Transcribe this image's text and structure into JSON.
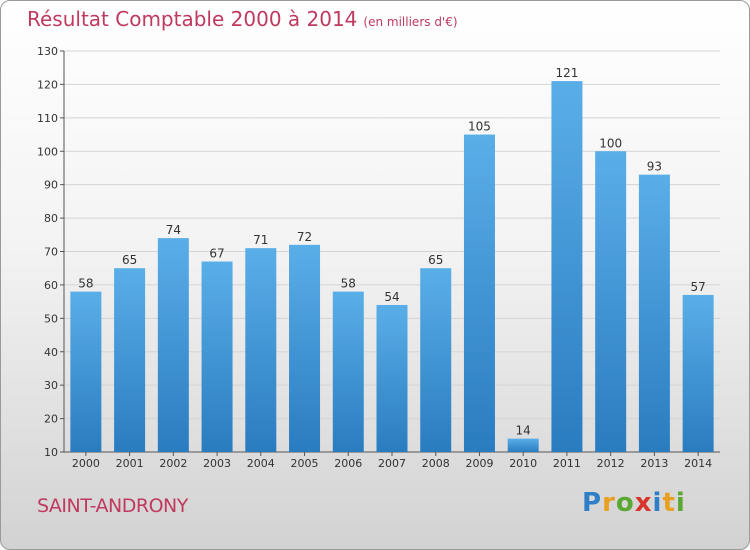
{
  "header": {
    "title": "Résultat Comptable 2000 à 2014",
    "subtitle": "(en milliers d'€)"
  },
  "footer": {
    "commune": "SAINT-ANDRONY",
    "logo_letters": [
      "P",
      "r",
      "o",
      "x",
      "i",
      "t",
      "i"
    ],
    "logo_colors": [
      "#2f7fc8",
      "#e8a020",
      "#5aa832",
      "#d8342b",
      "#2f7fc8",
      "#e8a020",
      "#5aa832"
    ]
  },
  "chart_data": {
    "type": "bar",
    "title": "Résultat Comptable 2000 à 2014",
    "subtitle": "(en milliers d'€)",
    "categories": [
      "2000",
      "2001",
      "2002",
      "2003",
      "2004",
      "2005",
      "2006",
      "2007",
      "2008",
      "2009",
      "2010",
      "2011",
      "2012",
      "2013",
      "2014"
    ],
    "values": [
      58,
      65,
      74,
      67,
      71,
      72,
      58,
      54,
      65,
      105,
      14,
      121,
      100,
      93,
      57
    ],
    "ylim": [
      10,
      130
    ],
    "yticks": [
      10,
      20,
      30,
      40,
      50,
      60,
      70,
      80,
      90,
      100,
      110,
      120,
      130
    ],
    "grid": true,
    "bar_color_top": "#5aaee8",
    "bar_color_bottom": "#2a7cc0"
  }
}
